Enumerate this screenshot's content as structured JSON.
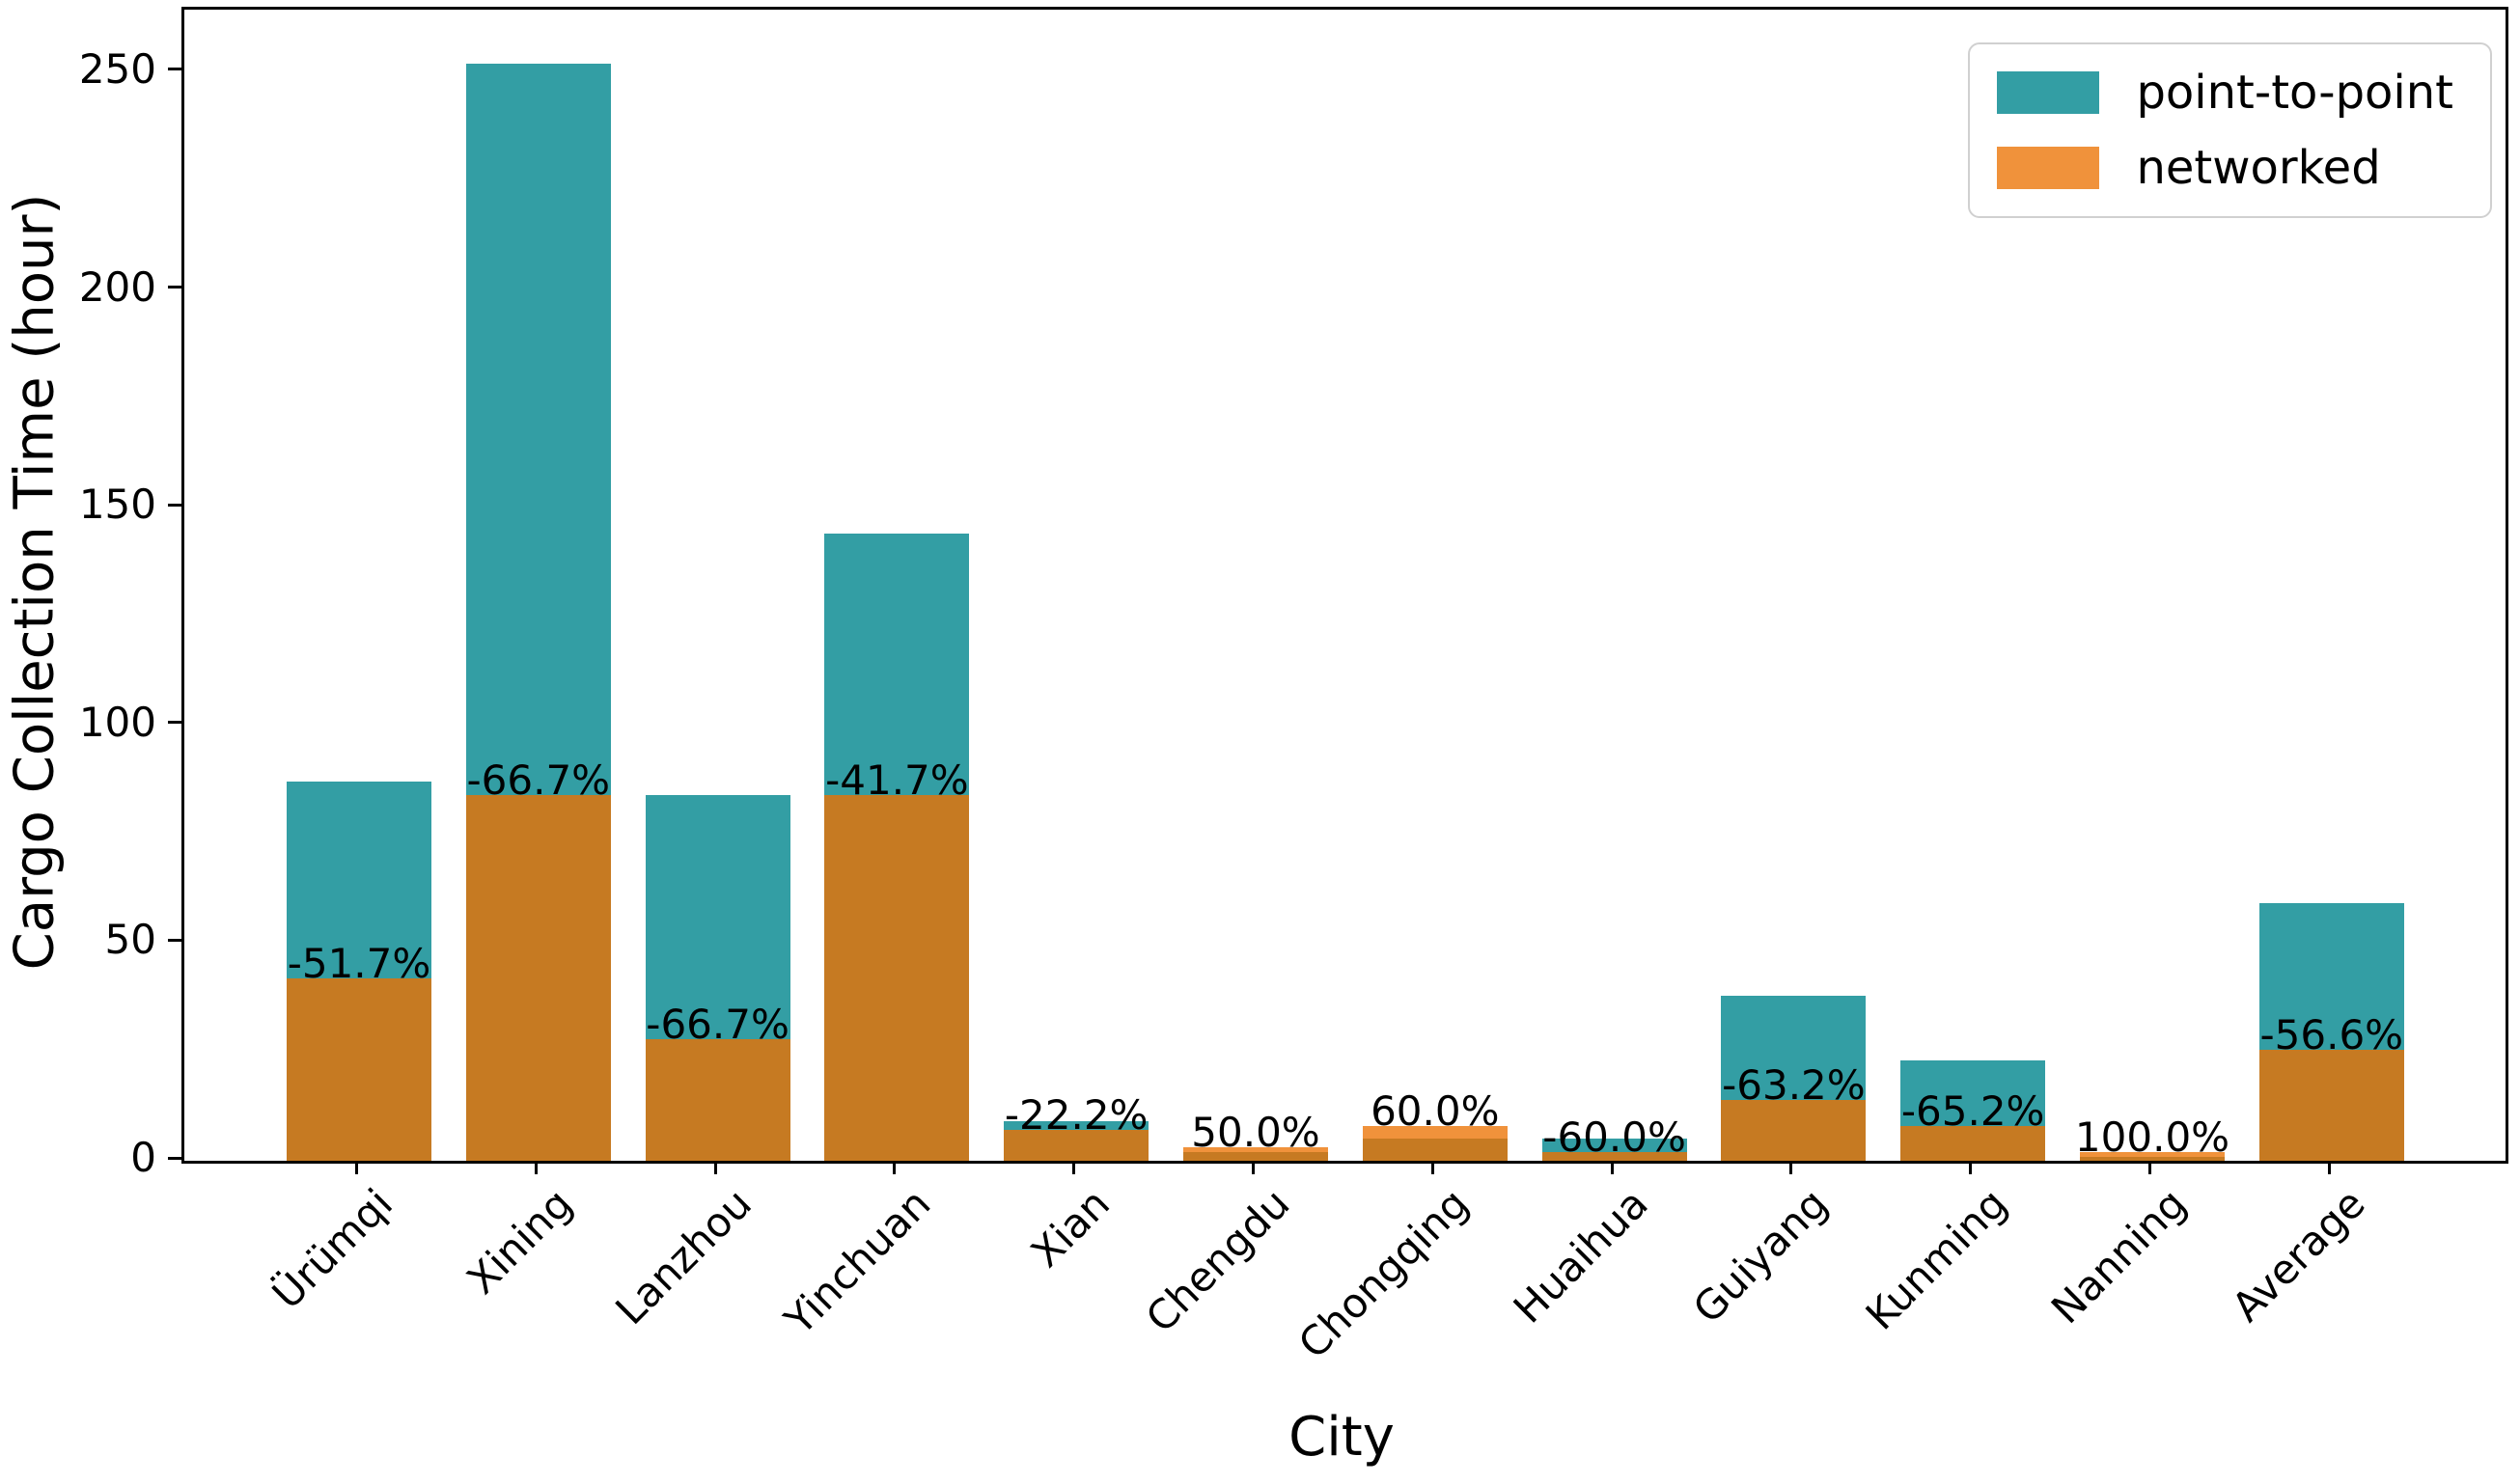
{
  "figure": {
    "background": "#ffffff"
  },
  "colors": {
    "point_to_point": "#339ea4",
    "networked": "#f0923b",
    "overlap_blend": "#c67a22",
    "axis": "#000000",
    "legend_border": "#d0d0d0"
  },
  "legend": {
    "items": [
      {
        "label": "point-to-point",
        "color": "#339ea4"
      },
      {
        "label": "networked",
        "color": "#f0923b"
      }
    ],
    "position": "upper right"
  },
  "chart_data": {
    "type": "bar",
    "overlay": true,
    "title": "",
    "xlabel": "City",
    "ylabel": "Cargo Collection Time (hour)",
    "categories": [
      "Ürümqi",
      "Xining",
      "Lanzhou",
      "Yinchuan",
      "Xian",
      "Chengdu",
      "Chongqing",
      "Huaihua",
      "Guiyang",
      "Kunming",
      "Nanning",
      "Average"
    ],
    "series": [
      {
        "name": "point-to-point",
        "color": "#339ea4",
        "values": [
          87,
          252,
          84,
          144,
          9,
          2,
          5,
          5,
          38,
          23,
          1,
          59.1
        ]
      },
      {
        "name": "networked",
        "color": "#f0923b",
        "values": [
          42,
          84,
          28,
          84,
          7,
          3,
          8,
          2,
          14,
          8,
          2,
          25.6
        ]
      }
    ],
    "bar_labels": [
      "-51.7%",
      "-66.7%",
      "-66.7%",
      "-41.7%",
      "-22.2%",
      "50.0%",
      "60.0%",
      "-60.0%",
      "-63.2%",
      "-65.2%",
      "100.0%",
      "-56.6%"
    ],
    "yticks": [
      0,
      50,
      100,
      150,
      200,
      250
    ],
    "ylim": [
      0,
      264.4
    ],
    "grid": false,
    "legend_position": "upper right"
  }
}
